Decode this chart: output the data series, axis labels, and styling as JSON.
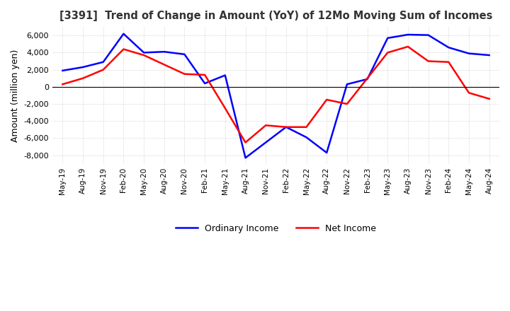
{
  "title": "[3391]  Trend of Change in Amount (YoY) of 12Mo Moving Sum of Incomes",
  "ylabel": "Amount (million yen)",
  "background_color": "#ffffff",
  "grid_color": "#aaaaaa",
  "ordinary_income_color": "#0000ff",
  "net_income_color": "#ff0000",
  "x_labels": [
    "May-19",
    "Aug-19",
    "Nov-19",
    "Feb-20",
    "May-20",
    "Aug-20",
    "Nov-20",
    "Feb-21",
    "May-21",
    "Aug-21",
    "Nov-21",
    "Feb-22",
    "May-22",
    "Aug-22",
    "Nov-22",
    "Feb-23",
    "May-23",
    "Aug-23",
    "Nov-23",
    "Feb-24",
    "May-24",
    "Aug-24"
  ],
  "ordinary_income": [
    1900,
    2300,
    2900,
    6200,
    4000,
    4100,
    3800,
    400,
    1350,
    -8300,
    -6500,
    -4700,
    -5900,
    -7700,
    300,
    900,
    5700,
    6100,
    6050,
    4600,
    3900,
    3700
  ],
  "net_income": [
    300,
    1000,
    2000,
    4400,
    3700,
    2600,
    1500,
    1400,
    -2500,
    -6500,
    -4500,
    -4700,
    -4700,
    -1500,
    -2000,
    1000,
    4000,
    4700,
    3000,
    2900,
    -700,
    -1400
  ],
  "ylim": [
    -9000,
    7000
  ],
  "yticks": [
    -8000,
    -6000,
    -4000,
    -2000,
    0,
    2000,
    4000,
    6000
  ]
}
